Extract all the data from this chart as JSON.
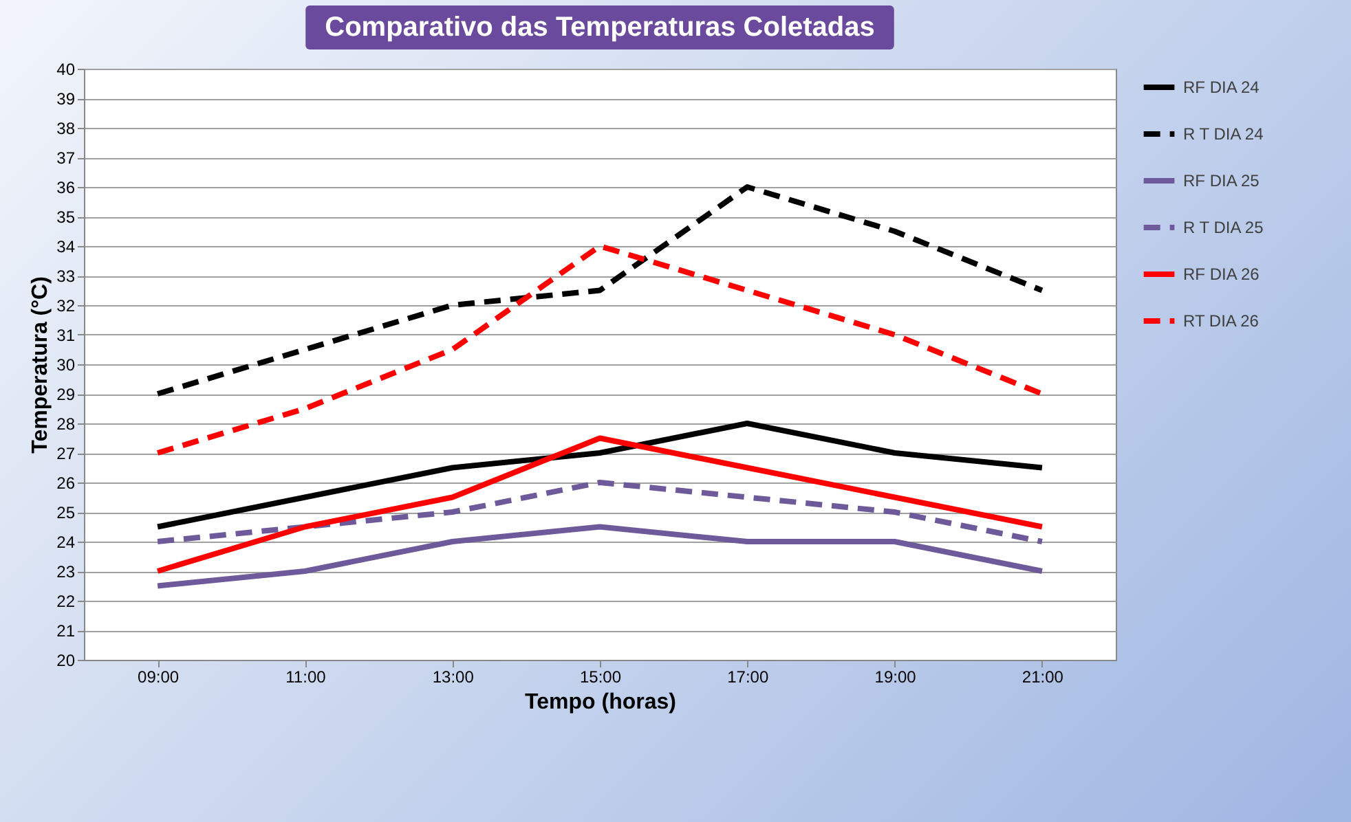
{
  "chart_data": {
    "type": "line",
    "title": "Comparativo das Temperaturas Coletadas",
    "xlabel": "Tempo (horas)",
    "ylabel": "Temperatura (°C)",
    "categories": [
      "09:00",
      "11:00",
      "13:00",
      "15:00",
      "17:00",
      "19:00",
      "21:00"
    ],
    "series": [
      {
        "name": "RF DIA 24",
        "color": "#000000",
        "line_style": "solid",
        "values": [
          24.5,
          25.5,
          26.5,
          27,
          28,
          27,
          26.5
        ]
      },
      {
        "name": "R T DIA 24",
        "color": "#000000",
        "line_style": "dashed",
        "values": [
          29,
          30.5,
          32,
          32.5,
          36,
          34.5,
          32.5
        ]
      },
      {
        "name": "RF DIA 25",
        "color": "#6e5a9a",
        "line_style": "solid",
        "values": [
          22.5,
          23,
          24,
          24.5,
          24,
          24,
          23
        ]
      },
      {
        "name": "R T DIA 25",
        "color": "#6e5a9a",
        "line_style": "dashed",
        "values": [
          24,
          24.5,
          25,
          26,
          25.5,
          25,
          24
        ]
      },
      {
        "name": "RF DIA 26",
        "color": "#ff0000",
        "line_style": "solid",
        "values": [
          23,
          24.5,
          25.5,
          27.5,
          26.5,
          25.5,
          24.5
        ]
      },
      {
        "name": "RT DIA 26",
        "color": "#ff0000",
        "line_style": "dashed",
        "values": [
          27,
          28.5,
          30.5,
          34,
          32.5,
          31,
          29
        ]
      }
    ],
    "ylim": [
      20,
      40
    ],
    "yticks": [
      20,
      21,
      22,
      23,
      24,
      25,
      26,
      27,
      28,
      29,
      30,
      31,
      32,
      33,
      34,
      35,
      36,
      37,
      38,
      39,
      40
    ],
    "grid": "y",
    "legend": "right",
    "marker": "none"
  }
}
